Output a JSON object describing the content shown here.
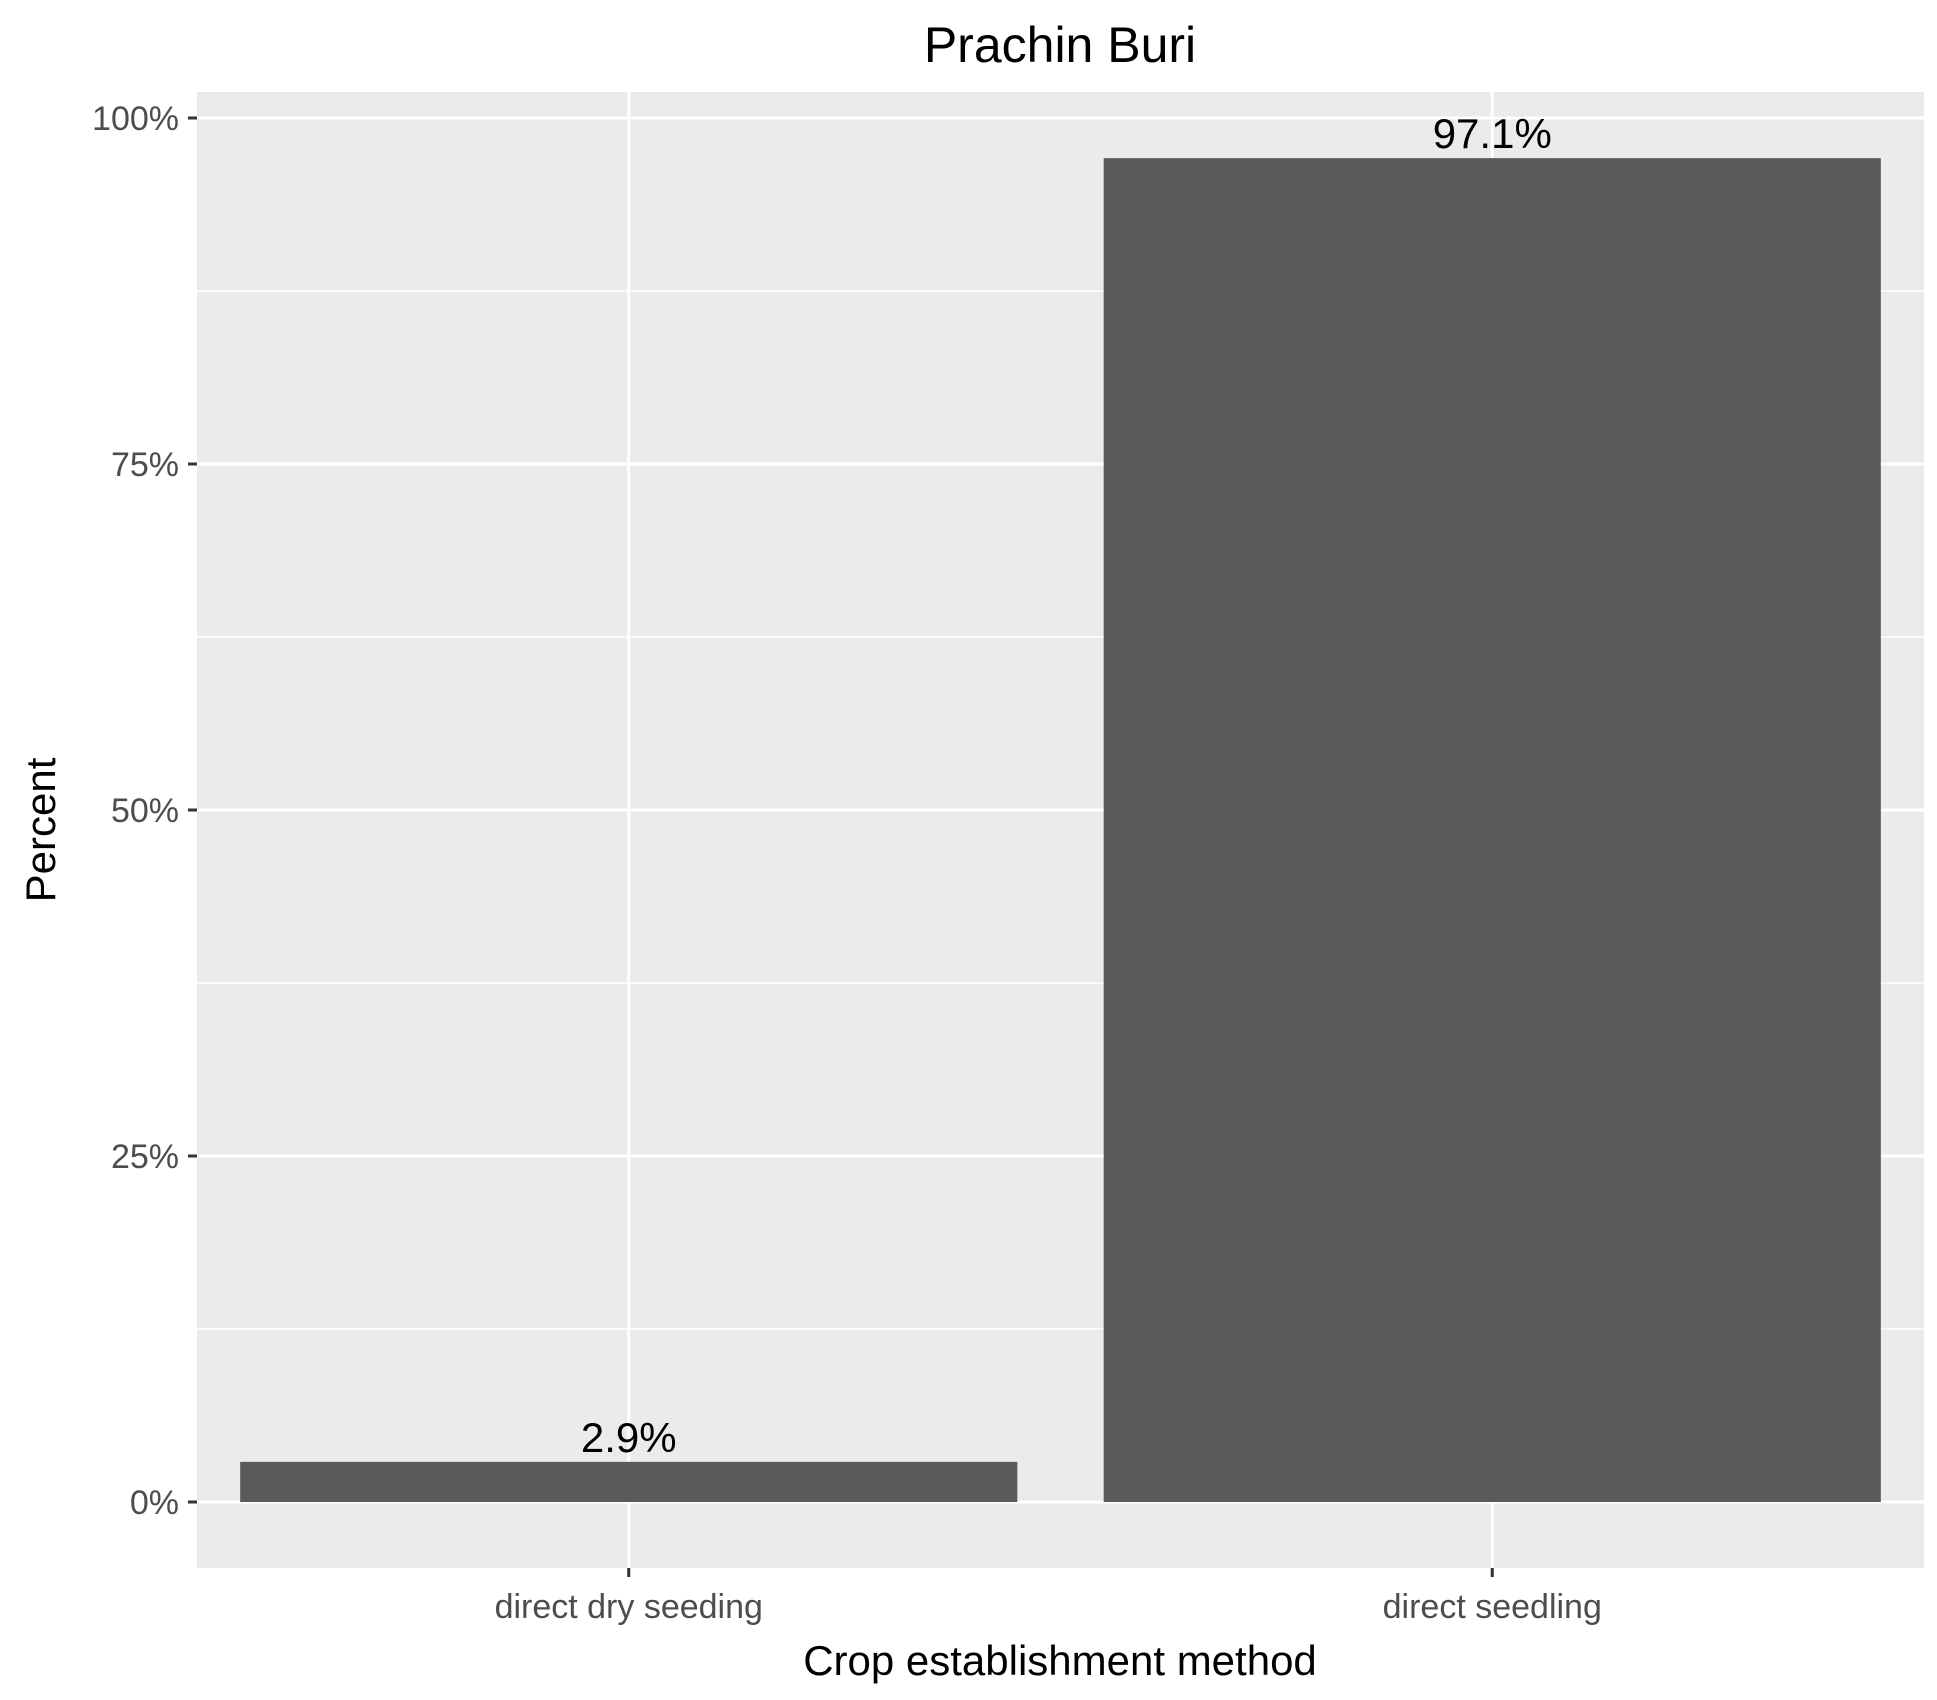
{
  "chart_data": {
    "type": "bar",
    "title": "Prachin Buri",
    "xlabel": "Crop establishment method",
    "ylabel": "Percent",
    "categories": [
      "direct dry seeding",
      "direct seedling"
    ],
    "values": [
      2.9,
      97.1
    ],
    "data_labels": [
      "2.9%",
      "97.1%"
    ],
    "ylim": [
      0,
      100
    ],
    "y_ticks": [
      {
        "value": 0,
        "label": "0%"
      },
      {
        "value": 25,
        "label": "25%"
      },
      {
        "value": 50,
        "label": "50%"
      },
      {
        "value": 75,
        "label": "75%"
      },
      {
        "value": 100,
        "label": "100%"
      }
    ],
    "grid": true,
    "colors": {
      "panel_background": "#ebebeb",
      "grid": "#ffffff",
      "bar_fill": "#595959",
      "tick_mark": "#333333"
    }
  }
}
